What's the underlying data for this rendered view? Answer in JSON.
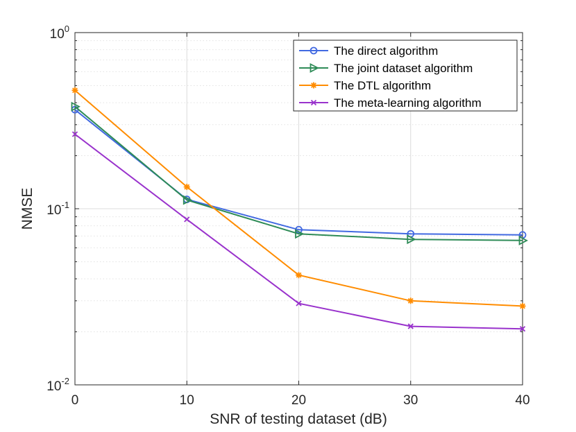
{
  "chart_data": {
    "type": "line",
    "title": "",
    "xlabel": "SNR of testing dataset (dB)",
    "ylabel": "NMSE",
    "yscale": "log",
    "xlim": [
      0,
      40
    ],
    "ylim": [
      0.01,
      1
    ],
    "xticks": [
      0,
      10,
      20,
      30,
      40
    ],
    "yticks": [
      {
        "value": 0.01,
        "base": "10",
        "exp": "-2"
      },
      {
        "value": 0.1,
        "base": "10",
        "exp": "-1"
      },
      {
        "value": 1,
        "base": "10",
        "exp": "0"
      }
    ],
    "grid": true,
    "legend_position": "top-right",
    "x": [
      0,
      10,
      20,
      30,
      40
    ],
    "series": [
      {
        "name": "The direct algorithm",
        "color": "#4169e1",
        "marker": "circle",
        "values": [
          0.365,
          0.113,
          0.076,
          0.072,
          0.071
        ]
      },
      {
        "name": "The joint dataset algorithm",
        "color": "#2e8b57",
        "marker": "triangle-right",
        "values": [
          0.38,
          0.112,
          0.072,
          0.067,
          0.066
        ]
      },
      {
        "name": "The DTL algorithm",
        "color": "#ff8c00",
        "marker": "asterisk",
        "values": [
          0.47,
          0.133,
          0.042,
          0.03,
          0.028
        ]
      },
      {
        "name": "The meta-learning algorithm",
        "color": "#9932cc",
        "marker": "x",
        "values": [
          0.265,
          0.087,
          0.029,
          0.0215,
          0.0208
        ]
      }
    ]
  }
}
